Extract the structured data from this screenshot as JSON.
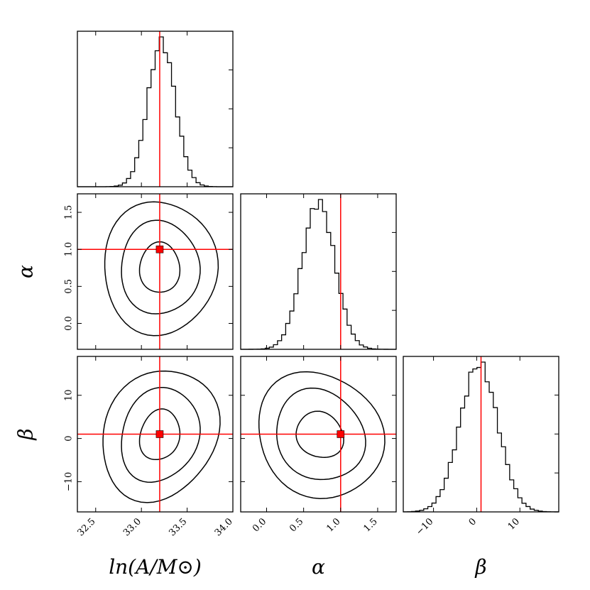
{
  "chart_data": {
    "type": "corner",
    "parameters": [
      {
        "key": "lnA",
        "label": "ln(A/M⊙)",
        "truth": 33.2,
        "range": [
          32.3,
          34.0
        ],
        "ticks": [
          "32.5",
          "33.0",
          "33.5",
          "34.0"
        ],
        "tick_values": [
          32.5,
          33.0,
          33.5,
          34.0
        ]
      },
      {
        "key": "alpha",
        "label": "α",
        "truth": 1.0,
        "range": [
          -0.35,
          1.75
        ],
        "ticks": [
          "0.0",
          "0.5",
          "1.0",
          "1.5"
        ],
        "tick_values": [
          0.0,
          0.5,
          1.0,
          1.5
        ]
      },
      {
        "key": "beta",
        "label": "β",
        "truth": 1.0,
        "range": [
          -17,
          19
        ],
        "ticks": [
          "−10",
          "0",
          "10"
        ],
        "tick_values": [
          -10,
          0,
          10
        ]
      }
    ],
    "histograms": [
      {
        "param": "lnA",
        "mean": 33.22,
        "sd": 0.15,
        "bins": 38
      },
      {
        "param": "alpha",
        "mean": 0.7,
        "sd": 0.22,
        "bins": 38
      },
      {
        "param": "beta",
        "mean": 0.5,
        "sd": 4.4,
        "bins": 38
      }
    ],
    "contours": [
      {
        "x": "lnA",
        "y": "alpha",
        "center": [
          33.2,
          0.75
        ],
        "levels": [
          {
            "rx": 0.22,
            "ry": 0.34
          },
          {
            "rx": 0.43,
            "ry": 0.63
          },
          {
            "rx": 0.62,
            "ry": 0.9
          }
        ]
      },
      {
        "x": "lnA",
        "y": "beta",
        "center": [
          33.2,
          0.8
        ],
        "levels": [
          {
            "rx": 0.22,
            "ry": 5.8
          },
          {
            "rx": 0.43,
            "ry": 10.8
          },
          {
            "rx": 0.64,
            "ry": 15.0
          }
        ]
      },
      {
        "x": "alpha",
        "y": "beta",
        "center": [
          0.72,
          0.8
        ],
        "levels": [
          {
            "rx": 0.32,
            "ry": 5.3
          },
          {
            "rx": 0.6,
            "ry": 10.5
          },
          {
            "rx": 0.85,
            "ry": 14.5
          }
        ]
      }
    ],
    "truth_color": "#ff0000",
    "line_color": "#000000"
  }
}
